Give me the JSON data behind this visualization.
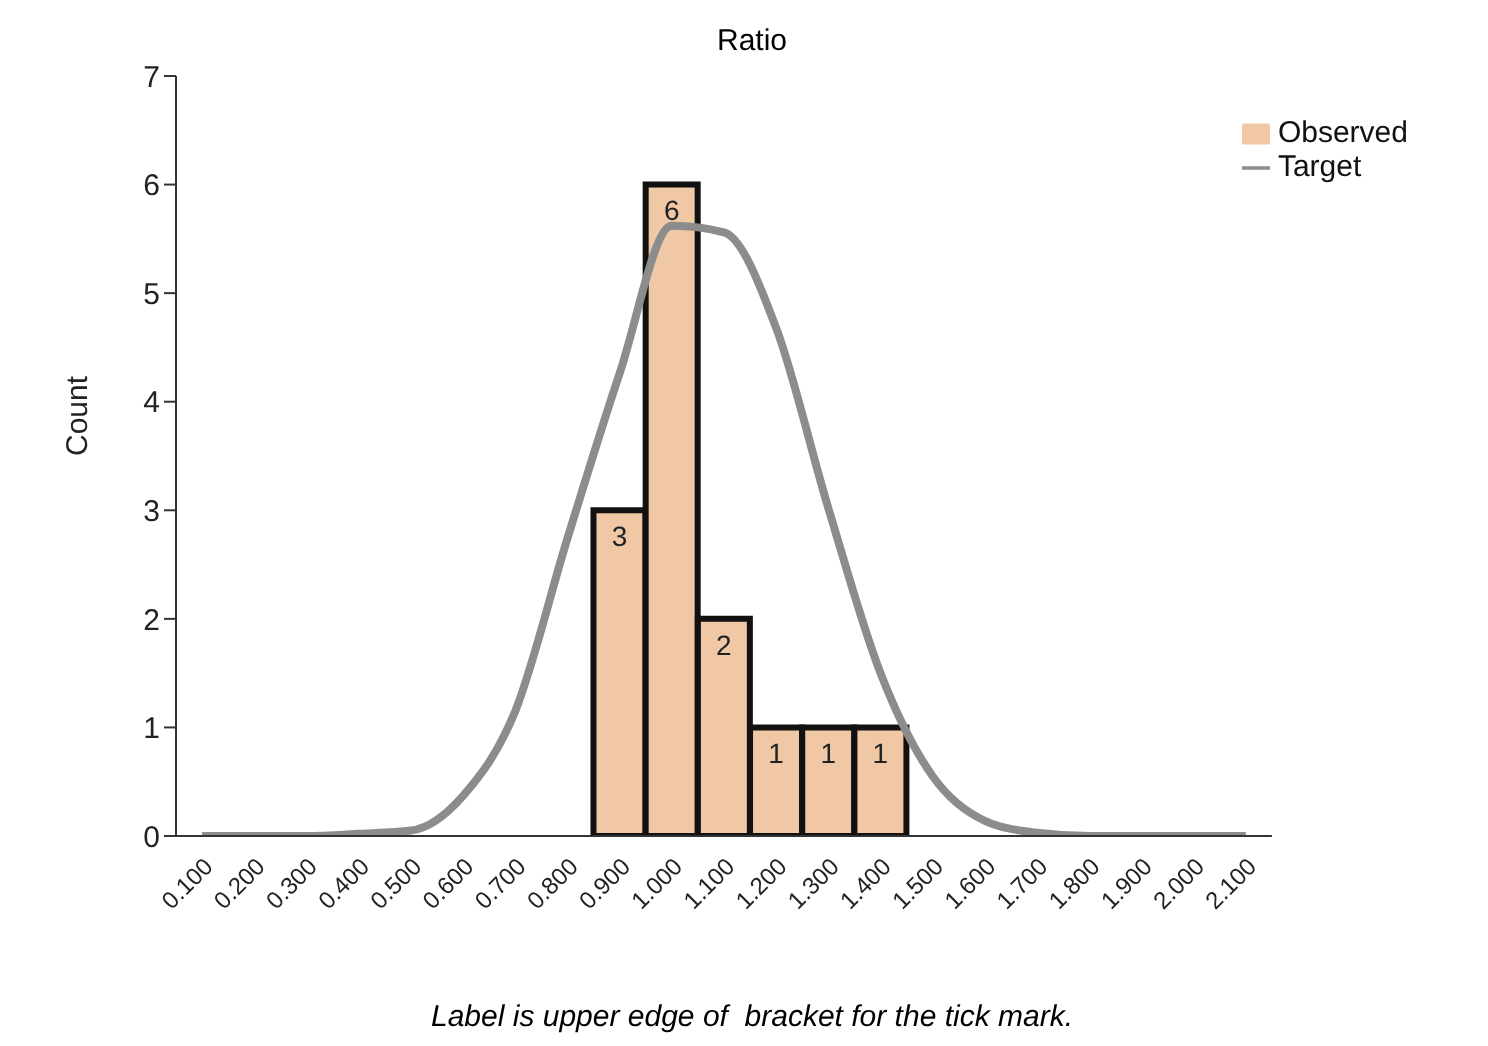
{
  "chart_data": {
    "type": "bar",
    "title": "Ratio",
    "ylabel": "Count",
    "annotations": [
      "Label is upper edge of  bracket for the tick mark."
    ],
    "categories": [
      "0.100",
      "0.200",
      "0.300",
      "0.400",
      "0.500",
      "0.600",
      "0.700",
      "0.800",
      "0.900",
      "1.000",
      "1.100",
      "1.200",
      "1.300",
      "1.400",
      "1.500",
      "1.600",
      "1.700",
      "1.800",
      "1.900",
      "2.000",
      "2.100"
    ],
    "series": [
      {
        "name": "Observed",
        "color": "#f1c8a6",
        "values": [
          null,
          null,
          null,
          null,
          null,
          null,
          null,
          null,
          3,
          6,
          2,
          1,
          1,
          1,
          null,
          null,
          null,
          null,
          null,
          null,
          null
        ],
        "value_labels": [
          null,
          null,
          null,
          null,
          null,
          null,
          null,
          null,
          "3",
          "6",
          "2",
          "1",
          "1",
          "1",
          null,
          null,
          null,
          null,
          null,
          null,
          null
        ]
      },
      {
        "name": "Target",
        "type": "line",
        "color": "#8c8c8c",
        "values": [
          0,
          0,
          0,
          0.02,
          0.05,
          0.37,
          1.15,
          2.74,
          4.26,
          5.62,
          5.56,
          4.68,
          3.02,
          1.5,
          0.55,
          0.14,
          0.03,
          0,
          0,
          0,
          0
        ]
      }
    ],
    "ylim": [
      0,
      7
    ],
    "yticks": [
      0,
      1,
      2,
      3,
      4,
      5,
      6,
      7
    ],
    "legend": "top right",
    "grid": false
  }
}
